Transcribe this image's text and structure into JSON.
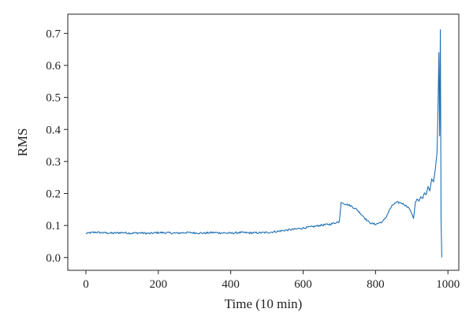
{
  "chart_data": {
    "type": "line",
    "title": "",
    "xlabel": "Time (10 min)",
    "ylabel": "RMS",
    "xlim": [
      -50,
      1030
    ],
    "ylim": [
      -0.04,
      0.76
    ],
    "xticks": [
      0,
      200,
      400,
      600,
      800,
      1000
    ],
    "xtick_labels": [
      "0",
      "200",
      "400",
      "600",
      "800",
      "1000"
    ],
    "yticks": [
      0.0,
      0.1,
      0.2,
      0.3,
      0.4,
      0.5,
      0.6,
      0.7
    ],
    "ytick_labels": [
      "0.0",
      "0.1",
      "0.2",
      "0.3",
      "0.4",
      "0.5",
      "0.6",
      "0.7"
    ],
    "grid": false,
    "color": "#1f6fb4",
    "series": [
      {
        "x": [
          0,
          25,
          50,
          75,
          100,
          125,
          150,
          175,
          200,
          225,
          250,
          275,
          300,
          325,
          350,
          375,
          400,
          425,
          450,
          475,
          500,
          525,
          550,
          575,
          600,
          625,
          650,
          675,
          690,
          700,
          705,
          710,
          720,
          730,
          740,
          750,
          760,
          770,
          780,
          790,
          800,
          810,
          820,
          830,
          840,
          850,
          860,
          870,
          880,
          890,
          895,
          900,
          905,
          910,
          915,
          920,
          925,
          930,
          935,
          940,
          945,
          950,
          955,
          960,
          965,
          970,
          972,
          975,
          977,
          979,
          981,
          983
        ],
        "y": [
          0.075,
          0.079,
          0.077,
          0.076,
          0.078,
          0.076,
          0.077,
          0.075,
          0.078,
          0.077,
          0.076,
          0.078,
          0.077,
          0.076,
          0.078,
          0.077,
          0.076,
          0.078,
          0.077,
          0.077,
          0.078,
          0.081,
          0.085,
          0.088,
          0.092,
          0.096,
          0.101,
          0.104,
          0.109,
          0.112,
          0.172,
          0.17,
          0.166,
          0.162,
          0.156,
          0.148,
          0.136,
          0.124,
          0.112,
          0.106,
          0.104,
          0.108,
          0.112,
          0.128,
          0.152,
          0.167,
          0.172,
          0.171,
          0.165,
          0.158,
          0.15,
          0.137,
          0.122,
          0.172,
          0.183,
          0.176,
          0.19,
          0.184,
          0.202,
          0.196,
          0.222,
          0.208,
          0.246,
          0.236,
          0.274,
          0.33,
          0.44,
          0.64,
          0.38,
          0.712,
          0.12,
          0.0
        ]
      }
    ]
  }
}
